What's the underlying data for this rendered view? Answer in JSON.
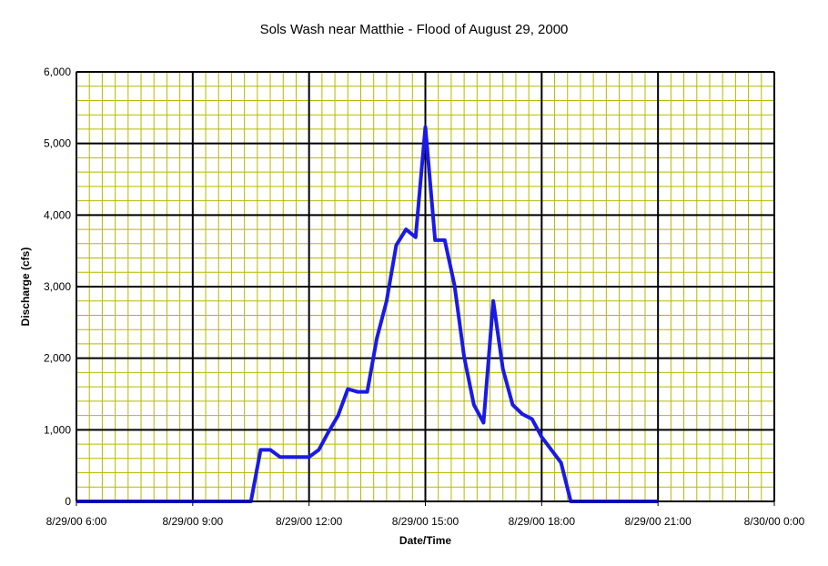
{
  "chart_data": {
    "type": "line",
    "title": "Sols Wash near Matthie - Flood of August 29, 2000",
    "xlabel": "Date/Time",
    "ylabel": "Discharge (cfs)",
    "ylim": [
      0,
      6000
    ],
    "xlim": [
      "2000-08-29T06:00",
      "2000-08-30T00:00"
    ],
    "y_ticks": [
      0,
      1000,
      2000,
      3000,
      4000,
      5000,
      6000
    ],
    "y_tick_labels": [
      "0",
      "1,000",
      "2,000",
      "3,000",
      "4,000",
      "5,000",
      "6,000"
    ],
    "x_ticks": [
      "2000-08-29T06:00",
      "2000-08-29T09:00",
      "2000-08-29T12:00",
      "2000-08-29T15:00",
      "2000-08-29T18:00",
      "2000-08-29T21:00",
      "2000-08-30T00:00"
    ],
    "x_tick_labels": [
      "8/29/00 6:00",
      "8/29/00 9:00",
      "8/29/00 12:00",
      "8/29/00 15:00",
      "8/29/00 18:00",
      "8/29/00 21:00",
      "8/30/00 0:00"
    ],
    "grid": true,
    "legend": "none",
    "colors": {
      "plot_background": "#ffffff",
      "minor_grid": "#b8b800",
      "major_grid": "#000000",
      "line": "#1a1ae6"
    },
    "series": [
      {
        "x": [
          "2000-08-29T06:00",
          "2000-08-29T09:00",
          "2000-08-29T10:30",
          "2000-08-29T10:45",
          "2000-08-29T11:00",
          "2000-08-29T11:15",
          "2000-08-29T11:30",
          "2000-08-29T12:00",
          "2000-08-29T12:15",
          "2000-08-29T12:30",
          "2000-08-29T12:45",
          "2000-08-29T13:00",
          "2000-08-29T13:15",
          "2000-08-29T13:30",
          "2000-08-29T13:45",
          "2000-08-29T14:00",
          "2000-08-29T14:15",
          "2000-08-29T14:30",
          "2000-08-29T14:45",
          "2000-08-29T15:00",
          "2000-08-29T15:15",
          "2000-08-29T15:30",
          "2000-08-29T15:45",
          "2000-08-29T16:00",
          "2000-08-29T16:15",
          "2000-08-29T16:30",
          "2000-08-29T16:45",
          "2000-08-29T17:00",
          "2000-08-29T17:15",
          "2000-08-29T17:30",
          "2000-08-29T17:45",
          "2000-08-29T18:00",
          "2000-08-29T18:30",
          "2000-08-29T18:45",
          "2000-08-29T21:00"
        ],
        "values": [
          0,
          0,
          0,
          720,
          720,
          620,
          620,
          620,
          720,
          970,
          1200,
          1570,
          1530,
          1530,
          2280,
          2800,
          3580,
          3800,
          3690,
          5230,
          3650,
          3650,
          3020,
          2020,
          1350,
          1100,
          2800,
          1850,
          1350,
          1220,
          1150,
          900,
          540,
          0,
          0
        ]
      }
    ]
  }
}
